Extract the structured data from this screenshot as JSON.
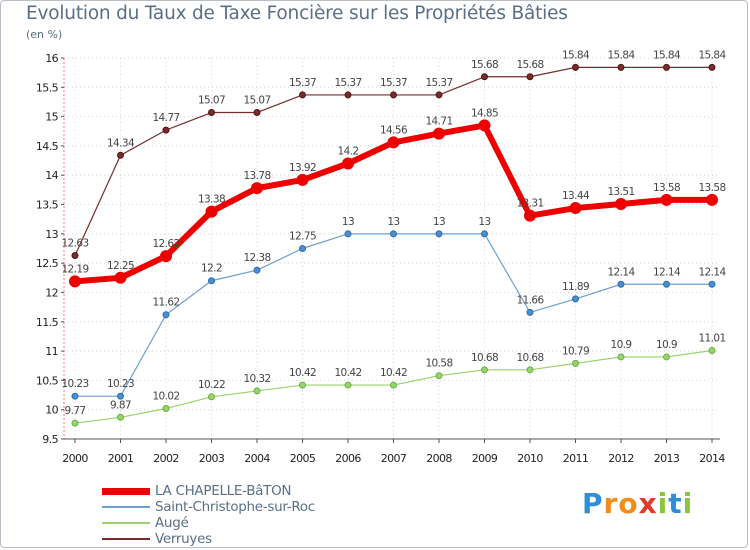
{
  "title": "Evolution du Taux de Taxe Foncière sur les Propriétés Bâties",
  "subtitle": "(en %)",
  "logo": {
    "text": "Proxiti",
    "letters": [
      "P",
      "r",
      "o",
      "x",
      "i",
      "t",
      "i"
    ],
    "colors": [
      "#2e8fd6",
      "#f28c1a",
      "#f28c1a",
      "#e23a2a",
      "#8bc53f",
      "#2e8fd6",
      "#8bc53f"
    ]
  },
  "chart_data": {
    "type": "line",
    "title": "Evolution du Taux de Taxe Foncière sur les Propriétés Bâties",
    "ylabel": "(en %)",
    "xlabel": "",
    "ylim": [
      9.5,
      16
    ],
    "yticks": [
      "9.5",
      "10",
      "10.5",
      "11",
      "11.5",
      "12",
      "12.5",
      "13",
      "13.5",
      "14",
      "14.5",
      "15",
      "15.5",
      "16"
    ],
    "categories": [
      "2000",
      "2001",
      "2002",
      "2003",
      "2004",
      "2005",
      "2006",
      "2007",
      "2008",
      "2009",
      "2010",
      "2011",
      "2012",
      "2013",
      "2014"
    ],
    "grid": true,
    "series": [
      {
        "name": "LA CHAPELLE-BâTON",
        "color": "#ee0000",
        "values": [
          12.19,
          12.25,
          12.62,
          13.38,
          13.78,
          13.92,
          14.2,
          14.56,
          14.71,
          14.85,
          13.31,
          13.44,
          13.51,
          13.58,
          13.58
        ],
        "labels": [
          "12.19",
          "12.25",
          "12.62",
          "13.38",
          "13.78",
          "13.92",
          "14.2",
          "14.56",
          "14.71",
          "14.85",
          "13.31",
          "13.44",
          "13.51",
          "13.58",
          "13.58"
        ]
      },
      {
        "name": "Saint-Christophe-sur-Roc",
        "color": "#6d9fd1",
        "values": [
          10.23,
          10.23,
          11.62,
          12.2,
          12.38,
          12.75,
          13,
          13,
          13,
          13,
          11.66,
          11.89,
          12.14,
          12.14,
          12.14
        ],
        "labels": [
          "10.23",
          "10.23",
          "11.62",
          "12.2",
          "12.38",
          "12.75",
          "13",
          "13",
          "13",
          "13",
          "11.66",
          "11.89",
          "12.14",
          "12.14",
          "12.14"
        ]
      },
      {
        "name": "Augé",
        "color": "#99d36b",
        "values": [
          9.77,
          9.87,
          10.02,
          10.22,
          10.32,
          10.42,
          10.42,
          10.42,
          10.58,
          10.68,
          10.68,
          10.79,
          10.9,
          10.9,
          11.01
        ],
        "labels": [
          "9.77",
          "9.87",
          "10.02",
          "10.22",
          "10.32",
          "10.42",
          "10.42",
          "10.42",
          "10.58",
          "10.68",
          "10.68",
          "10.79",
          "10.9",
          "10.9",
          "11.01"
        ]
      },
      {
        "name": "Verruyes",
        "color": "#7a2c2c",
        "values": [
          12.63,
          14.34,
          14.77,
          15.07,
          15.07,
          15.37,
          15.37,
          15.37,
          15.37,
          15.68,
          15.68,
          15.84,
          15.84,
          15.84,
          15.84
        ],
        "labels": [
          "12.63",
          "14.34",
          "14.77",
          "15.07",
          "15.07",
          "15.37",
          "15.37",
          "15.37",
          "15.37",
          "15.68",
          "15.68",
          "15.84",
          "15.84",
          "15.84",
          "15.84"
        ]
      }
    ]
  }
}
